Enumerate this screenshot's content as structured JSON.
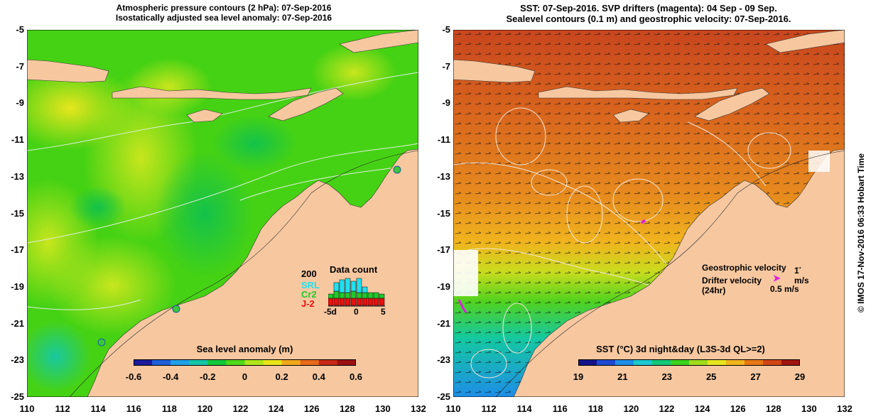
{
  "left_panel": {
    "title_line1": "Atmospheric pressure contours (2 hPa): 07-Sep-2016",
    "title_line2": "Isostatically adjusted sea level anomaly: 07-Sep-2016",
    "colorbar": {
      "label": "Sea level anomaly (m)",
      "ticks": [
        "-0.6",
        "-0.4",
        "-0.2",
        "0",
        "0.2",
        "0.4",
        "0.6"
      ],
      "colors": [
        "#1a1a9a",
        "#1e5fd8",
        "#1fa0e6",
        "#16c6a8",
        "#12c83a",
        "#52d81a",
        "#aee61a",
        "#e8e61a",
        "#f0a81a",
        "#e86a1a",
        "#c82814",
        "#9a1010"
      ]
    },
    "data_count": {
      "title": "Data count",
      "max_label": "200",
      "series": [
        {
          "name": "SRL",
          "color": "#22e0f0"
        },
        {
          "name": "Cr2",
          "color": "#22c82a"
        },
        {
          "name": "J-2",
          "color": "#e81010"
        }
      ],
      "xticks": [
        "-5d",
        "0",
        "5"
      ]
    }
  },
  "right_panel": {
    "title_line1": "SST: 07-Sep-2016. SVP drifters (magenta): 04 Sep - 09 Sep.",
    "title_line2": "Sealevel contours (0.1 m) and geostrophic velocity: 07-Sep-2016.",
    "colorbar": {
      "label": "SST (°C) 3d night&day (L3S-3d QL>=2)",
      "ticks": [
        "19",
        "21",
        "23",
        "25",
        "27",
        "29"
      ],
      "colors": [
        "#14148a",
        "#1e4ad0",
        "#1e8ee6",
        "#1ec8d0",
        "#14c878",
        "#3cd21e",
        "#a0dc1e",
        "#e6e61e",
        "#f0b41e",
        "#e87814",
        "#d24614",
        "#a01410"
      ]
    },
    "legend": {
      "geo_label": "Geostrophic velocity",
      "geo_scale": "1 m/s",
      "drifter_label": "Drifter velocity",
      "drifter_sub": "(24hr)",
      "drifter_scale": "0.5 m/s"
    }
  },
  "axes": {
    "y_ticks": [
      "-5",
      "-7",
      "-9",
      "-11",
      "-13",
      "-15",
      "-17",
      "-19",
      "-21",
      "-23",
      "-25"
    ],
    "x_ticks": [
      "110",
      "112",
      "114",
      "116",
      "118",
      "120",
      "122",
      "124",
      "126",
      "128",
      "130",
      "132"
    ]
  },
  "colors": {
    "land": "#f7c8a0",
    "ocean_left": "#3cd214",
    "ocean_right": "#e07a1e"
  },
  "credit": "© IMOS 17-Nov-2016 06:33 Hobart Time"
}
